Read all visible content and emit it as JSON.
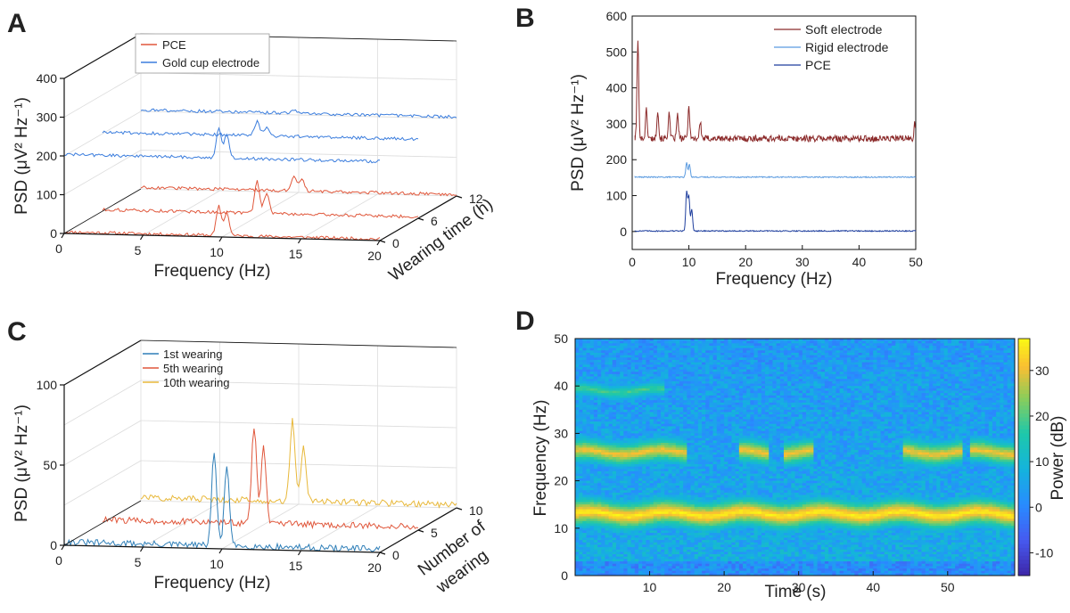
{
  "panels": {
    "a": "A",
    "b": "B",
    "c": "C",
    "d": "D"
  },
  "chart_data": [
    {
      "panel": "A",
      "type": "line",
      "projection": "3d-waterfall",
      "xlabel": "Frequency (Hz)",
      "ylabel": "PSD (μV² Hz⁻¹)",
      "zlabel": "Wearing time (h)",
      "xlim": [
        0,
        20
      ],
      "ylim": [
        0,
        400
      ],
      "xticks": [
        "0",
        "5",
        "10",
        "15",
        "20"
      ],
      "yticks": [
        "0",
        "100",
        "200",
        "300",
        "400"
      ],
      "zticks": [
        "0",
        "6",
        "12"
      ],
      "legend": [
        "PCE",
        "Gold cup electrode"
      ],
      "colors": {
        "PCE": "#e0573b",
        "Gold cup electrode": "#3b7ddd"
      },
      "series": [
        {
          "name": "PCE",
          "wearing_time": 0,
          "offset": 0,
          "peaks": [
            [
              9.8,
              75
            ],
            [
              10.3,
              60
            ]
          ]
        },
        {
          "name": "PCE",
          "wearing_time": 6,
          "offset": 0,
          "peaks": [
            [
              9.8,
              82
            ],
            [
              10.4,
              52
            ]
          ]
        },
        {
          "name": "PCE",
          "wearing_time": 12,
          "offset": 0,
          "peaks": [
            [
              9.7,
              35
            ],
            [
              10.2,
              28
            ]
          ]
        },
        {
          "name": "Gold cup electrode",
          "wearing_time": 0,
          "offset": 200,
          "peaks": [
            [
              9.8,
              75
            ],
            [
              10.3,
              60
            ]
          ]
        },
        {
          "name": "Gold cup electrode",
          "wearing_time": 6,
          "offset": 200,
          "peaks": [
            [
              9.8,
              38
            ],
            [
              10.4,
              22
            ]
          ]
        },
        {
          "name": "Gold cup electrode",
          "wearing_time": 12,
          "offset": 200,
          "peaks": [
            [
              9.7,
              10
            ]
          ]
        }
      ]
    },
    {
      "panel": "B",
      "type": "line",
      "xlabel": "Frequency (Hz)",
      "ylabel": "PSD (μV² Hz⁻¹)",
      "xlim": [
        0,
        50
      ],
      "ylim": [
        -50,
        600
      ],
      "xticks": [
        "0",
        "10",
        "20",
        "30",
        "40",
        "50"
      ],
      "yticks": [
        "0",
        "100",
        "200",
        "300",
        "400",
        "500",
        "600"
      ],
      "legend": [
        "Soft electrode",
        "Rigid electrode",
        "PCE"
      ],
      "series": [
        {
          "name": "Soft electrode",
          "color": "#8b2a2a",
          "baseline": 250,
          "peaks": [
            [
              1.0,
              270
            ],
            [
              2.5,
              80
            ],
            [
              4.5,
              80
            ],
            [
              6.5,
              70
            ],
            [
              8.0,
              65
            ],
            [
              10.0,
              90
            ],
            [
              12.0,
              45
            ]
          ]
        },
        {
          "name": "Rigid electrode",
          "color": "#5b9be0",
          "baseline": 150,
          "peaks": [
            [
              9.6,
              40
            ],
            [
              10.1,
              35
            ]
          ]
        },
        {
          "name": "PCE",
          "color": "#1f3f9e",
          "baseline": 0,
          "peaks": [
            [
              9.6,
              110
            ],
            [
              10.0,
              95
            ],
            [
              10.5,
              60
            ]
          ]
        }
      ]
    },
    {
      "panel": "C",
      "type": "line",
      "projection": "3d-waterfall",
      "xlabel": "Frequency (Hz)",
      "ylabel": "PSD (μV² Hz⁻¹)",
      "zlabel": "Number of wearing",
      "zlabel_lines": [
        "Number of",
        "wearing"
      ],
      "xlim": [
        0,
        20
      ],
      "ylim": [
        0,
        100
      ],
      "xticks": [
        "0",
        "5",
        "10",
        "15",
        "20"
      ],
      "yticks": [
        "0",
        "50",
        "100"
      ],
      "zticks": [
        "0",
        "5",
        "10"
      ],
      "legend": [
        "1st wearing",
        "5th wearing",
        "10th wearing"
      ],
      "colors": {
        "1st wearing": "#2f7fb8",
        "5th wearing": "#e0573b",
        "10th wearing": "#e8b83a"
      },
      "series": [
        {
          "name": "1st wearing",
          "wearing": 0,
          "peaks": [
            [
              9.5,
              58
            ],
            [
              10.3,
              50
            ]
          ]
        },
        {
          "name": "5th wearing",
          "wearing": 5,
          "peaks": [
            [
              9.6,
              60
            ],
            [
              10.2,
              48
            ]
          ]
        },
        {
          "name": "10th wearing",
          "wearing": 10,
          "peaks": [
            [
              9.6,
              50
            ],
            [
              10.3,
              35
            ]
          ]
        }
      ]
    },
    {
      "panel": "D",
      "type": "heatmap",
      "xlabel": "Time (s)",
      "ylabel": "Frequency (Hz)",
      "colorbar_label": "Power (dB)",
      "xlim": [
        0,
        59
      ],
      "ylim": [
        0,
        50
      ],
      "xticks": [
        "10",
        "20",
        "30",
        "40",
        "50"
      ],
      "yticks": [
        "0",
        "10",
        "20",
        "30",
        "40",
        "50"
      ],
      "colorbar_ticks": [
        "-10",
        "0",
        "10",
        "20",
        "30"
      ],
      "color_range": [
        -15,
        37
      ],
      "bands": [
        {
          "freq_hz": 13,
          "power_db": 35,
          "time_range": [
            0,
            59
          ]
        },
        {
          "freq_hz": 26,
          "power_db": 30,
          "segments": [
            [
              0,
              15
            ],
            [
              22,
              26
            ],
            [
              28,
              32
            ],
            [
              44,
              52
            ],
            [
              53,
              59
            ]
          ]
        },
        {
          "freq_hz": 39,
          "power_db": 18,
          "time_range": [
            0,
            12
          ]
        }
      ]
    }
  ]
}
